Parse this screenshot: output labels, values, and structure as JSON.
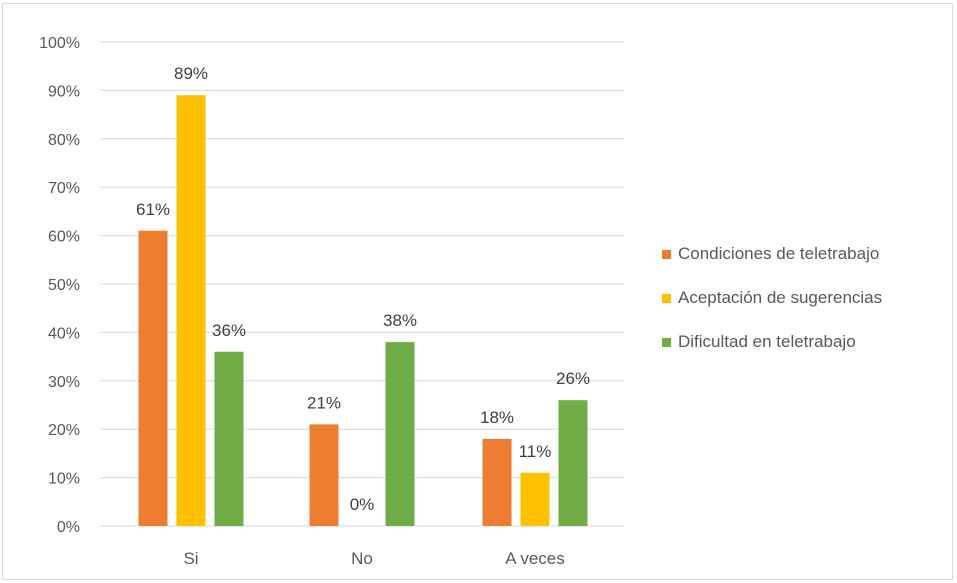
{
  "chart_data": {
    "type": "bar",
    "categories": [
      "Si",
      "No",
      "A veces"
    ],
    "series": [
      {
        "name": "Condiciones de teletrabajo",
        "values": [
          61,
          21,
          18
        ],
        "labels": [
          "61%",
          "21%",
          "18%"
        ],
        "color": "#ed7d31"
      },
      {
        "name": "Aceptación de sugerencias",
        "values": [
          89,
          0,
          11
        ],
        "labels": [
          "89%",
          "0%",
          "11%"
        ],
        "color": "#ffc000"
      },
      {
        "name": "Dificultad en teletrabajo",
        "values": [
          36,
          38,
          26
        ],
        "labels": [
          "36%",
          "38%",
          "26%"
        ],
        "color": "#70ad47"
      }
    ],
    "y_ticks": [
      "0%",
      "10%",
      "20%",
      "30%",
      "40%",
      "50%",
      "60%",
      "70%",
      "80%",
      "90%",
      "100%"
    ],
    "ylim": [
      0,
      100
    ],
    "grid": true,
    "legend_position": "right"
  }
}
